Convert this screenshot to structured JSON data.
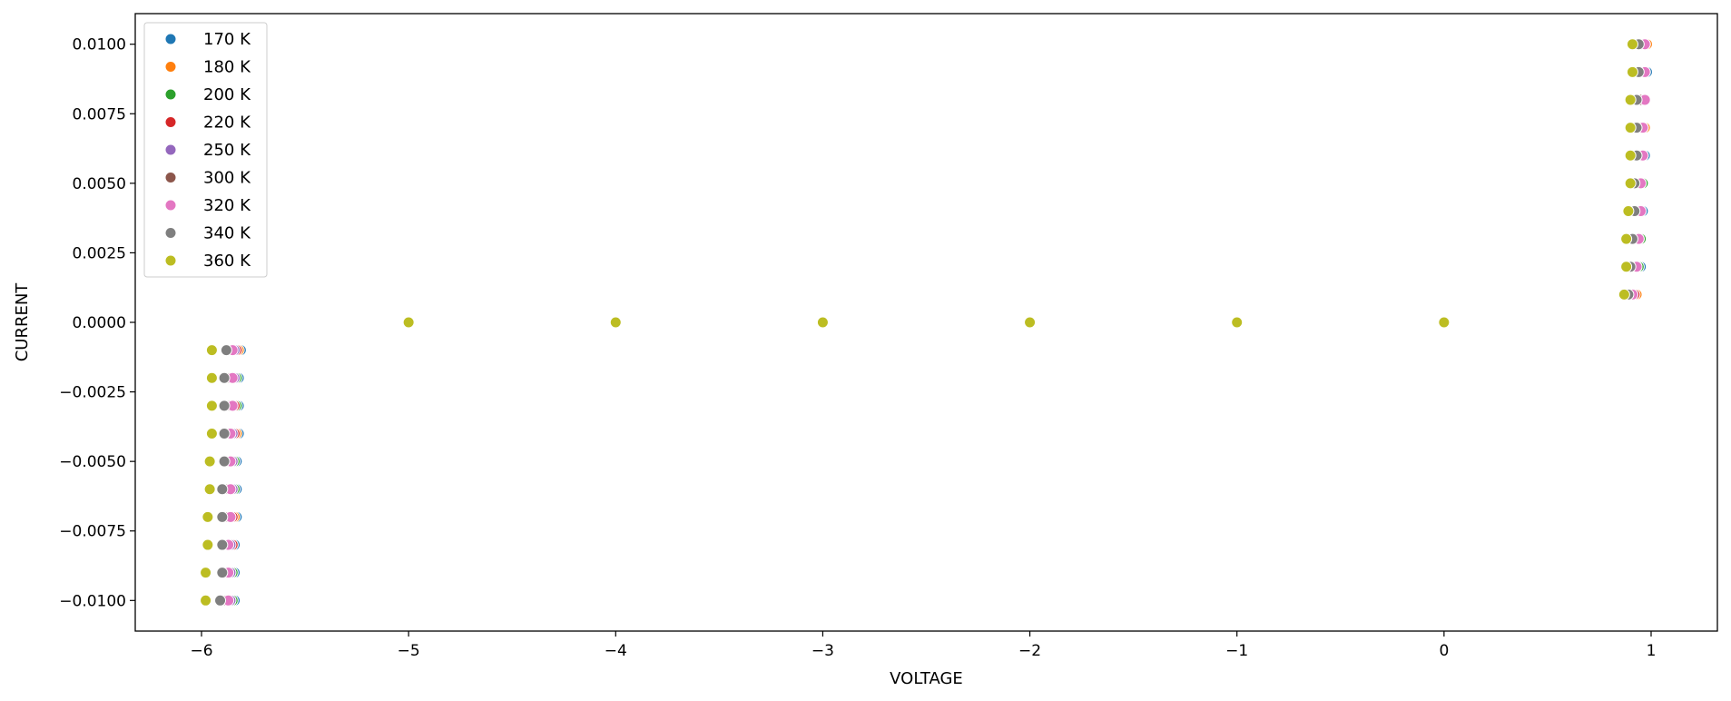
{
  "chart_data": {
    "type": "scatter",
    "title": "",
    "xlabel": "VOLTAGE",
    "ylabel": "CURRENT",
    "xlim": [
      -6.32,
      1.32
    ],
    "ylim": [
      -0.0111,
      0.0111
    ],
    "xticks": [
      -6,
      -5,
      -4,
      -3,
      -2,
      -1,
      0,
      1
    ],
    "xtick_labels": [
      "−6",
      "−5",
      "−4",
      "−3",
      "−2",
      "−1",
      "0",
      "1"
    ],
    "yticks": [
      0.01,
      0.0075,
      0.005,
      0.0025,
      0,
      -0.0025,
      -0.005,
      -0.0075,
      -0.01
    ],
    "ytick_labels": [
      "0.0100",
      "0.0075",
      "0.0050",
      "0.0025",
      "0.0000",
      "−0.0025",
      "−0.0050",
      "−0.0075",
      "−0.0100"
    ],
    "grid": false,
    "legend_position": "top-left",
    "currents": [
      -0.01,
      -0.009,
      -0.008,
      -0.007,
      -0.006,
      -0.005,
      -0.004,
      -0.003,
      -0.002,
      -0.001,
      0,
      0,
      0,
      0,
      0,
      0,
      0.001,
      0.002,
      0.003,
      0.004,
      0.005,
      0.006,
      0.007,
      0.008,
      0.009,
      0.01
    ],
    "series": [
      {
        "name": "170 K",
        "color": "#1f77b4",
        "x": [
          -5.84,
          -5.84,
          -5.84,
          -5.83,
          -5.83,
          -5.83,
          -5.82,
          -5.82,
          -5.82,
          -5.81,
          -5,
          -4,
          -3,
          -2,
          -1,
          0,
          0.93,
          0.95,
          0.95,
          0.96,
          0.96,
          0.97,
          0.97,
          0.97,
          0.98,
          0.98
        ]
      },
      {
        "name": "180 K",
        "color": "#ff7f0e",
        "x": [
          -5.85,
          -5.85,
          -5.85,
          -5.84,
          -5.84,
          -5.84,
          -5.83,
          -5.83,
          -5.83,
          -5.82,
          -5,
          -4,
          -3,
          -2,
          -1,
          0,
          0.93,
          0.94,
          0.95,
          0.95,
          0.96,
          0.96,
          0.97,
          0.97,
          0.97,
          0.98
        ]
      },
      {
        "name": "200 K",
        "color": "#2ca02c",
        "x": [
          -5.85,
          -5.85,
          -5.85,
          -5.85,
          -5.84,
          -5.84,
          -5.84,
          -5.83,
          -5.83,
          -5.83,
          -5,
          -4,
          -3,
          -2,
          -1,
          0,
          0.92,
          0.94,
          0.95,
          0.95,
          0.96,
          0.96,
          0.96,
          0.97,
          0.97,
          0.97
        ]
      },
      {
        "name": "220 K",
        "color": "#d62728",
        "x": [
          -5.86,
          -5.86,
          -5.85,
          -5.85,
          -5.85,
          -5.85,
          -5.84,
          -5.84,
          -5.84,
          -5.83,
          -5,
          -4,
          -3,
          -2,
          -1,
          0,
          0.92,
          0.93,
          0.94,
          0.95,
          0.95,
          0.96,
          0.96,
          0.96,
          0.97,
          0.97
        ]
      },
      {
        "name": "250 K",
        "color": "#9467bd",
        "x": [
          -5.86,
          -5.86,
          -5.86,
          -5.86,
          -5.85,
          -5.85,
          -5.85,
          -5.85,
          -5.84,
          -5.84,
          -5,
          -4,
          -3,
          -2,
          -1,
          0,
          0.91,
          0.93,
          0.94,
          0.94,
          0.95,
          0.95,
          0.96,
          0.96,
          0.96,
          0.97
        ]
      },
      {
        "name": "300 K",
        "color": "#8c564b",
        "x": [
          -5.88,
          -5.88,
          -5.88,
          -5.87,
          -5.87,
          -5.87,
          -5.87,
          -5.86,
          -5.86,
          -5.86,
          -5,
          -4,
          -3,
          -2,
          -1,
          0,
          0.9,
          0.92,
          0.93,
          0.93,
          0.94,
          0.94,
          0.94,
          0.95,
          0.95,
          0.95
        ]
      },
      {
        "name": "320 K",
        "color": "#e377c2",
        "x": [
          -5.87,
          -5.87,
          -5.87,
          -5.86,
          -5.86,
          -5.86,
          -5.86,
          -5.85,
          -5.85,
          -5.85,
          -5,
          -4,
          -3,
          -2,
          -1,
          0,
          0.91,
          0.93,
          0.94,
          0.95,
          0.95,
          0.96,
          0.96,
          0.97,
          0.97,
          0.97
        ]
      },
      {
        "name": "340 K",
        "color": "#7f7f7f",
        "x": [
          -5.91,
          -5.9,
          -5.9,
          -5.9,
          -5.9,
          -5.89,
          -5.89,
          -5.89,
          -5.89,
          -5.88,
          -5,
          -4,
          -3,
          -2,
          -1,
          0,
          0.89,
          0.9,
          0.91,
          0.92,
          0.92,
          0.93,
          0.93,
          0.93,
          0.94,
          0.94
        ]
      },
      {
        "name": "360 K",
        "color": "#bcbd22",
        "x": [
          -5.98,
          -5.98,
          -5.97,
          -5.97,
          -5.96,
          -5.96,
          -5.95,
          -5.95,
          -5.95,
          -5.95,
          -5,
          -4,
          -3,
          -2,
          -1,
          0,
          0.87,
          0.88,
          0.88,
          0.89,
          0.9,
          0.9,
          0.9,
          0.9,
          0.91,
          0.91
        ]
      }
    ]
  }
}
